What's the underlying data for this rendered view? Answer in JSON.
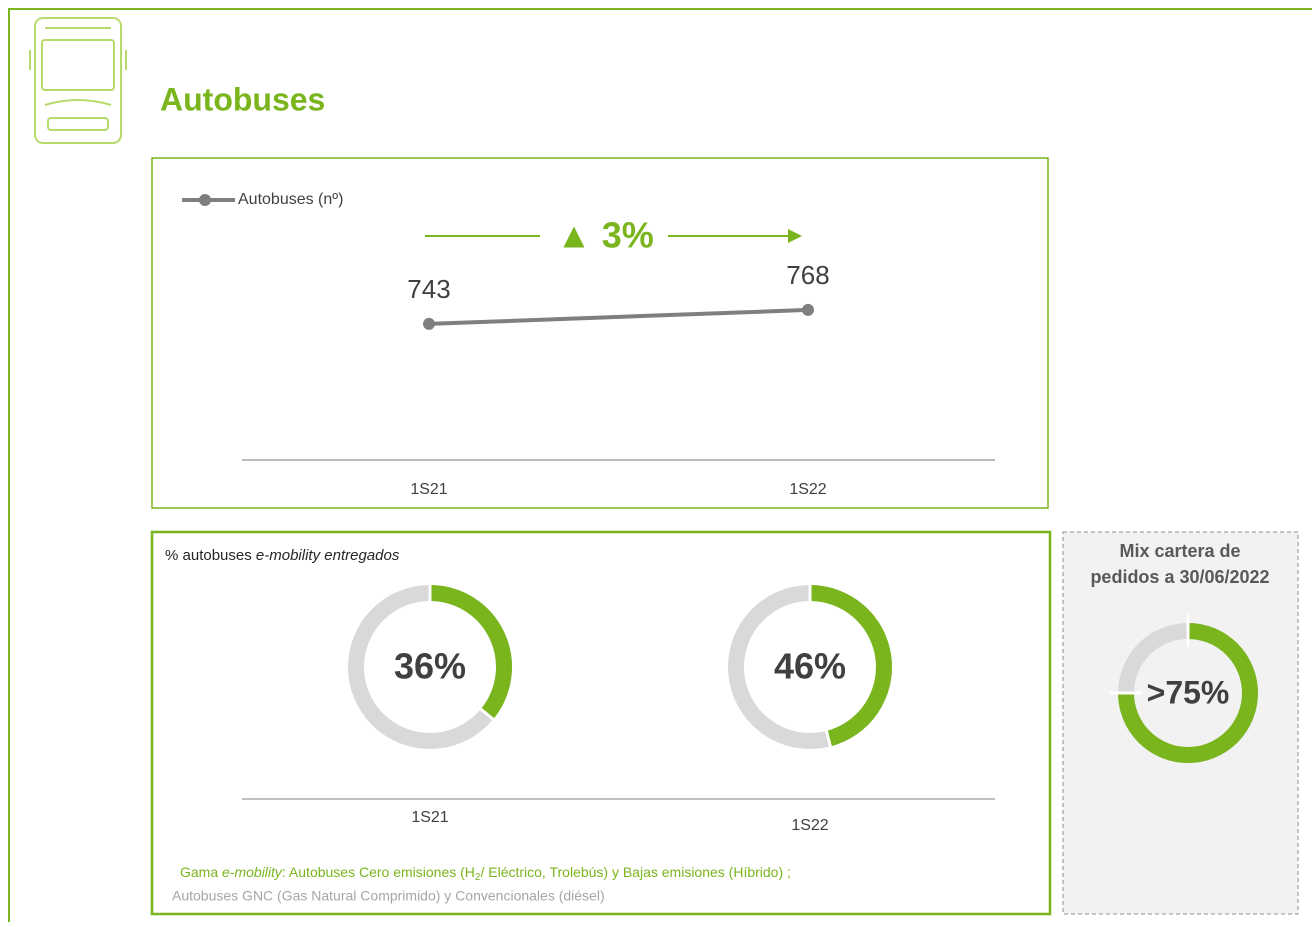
{
  "header": {
    "title": "Autobuses"
  },
  "chart_data": [
    {
      "type": "line",
      "categories": [
        "1S21",
        "1S22"
      ],
      "series": [
        {
          "name": "Autobuses (nº)",
          "color": "#7f7f7f",
          "values": [
            743,
            768
          ]
        }
      ],
      "ylim": [
        500,
        1000
      ],
      "annotation": "▲ 3%",
      "annotation_color": "#7ab51d"
    },
    {
      "type": "donut",
      "title": [
        "% autobuses ",
        "e-mobility entregados"
      ],
      "categories": [
        "1S21",
        "1S22"
      ],
      "values": [
        36,
        46
      ],
      "value_labels": [
        "36%",
        "46%"
      ],
      "color": "#7ab51d",
      "rest_color": "#d9d9d9"
    },
    {
      "type": "donut",
      "title": [
        "Mix cartera de",
        "pedidos a 30/06/2022"
      ],
      "values": [
        75
      ],
      "value_labels": [
        ">75%"
      ],
      "color": "#7ab51d",
      "rest_color": "#d9d9d9"
    }
  ],
  "footnote": {
    "line1": [
      "Gama ",
      "e-mobility",
      ": Autobuses Cero emisiones (H",
      "2",
      "/ Eléctrico, Trolebús) y Bajas emisiones (Híbrido) ;"
    ],
    "line2": "Autobuses GNC (Gas Natural Comprimido) y Convencionales (diésel)"
  }
}
